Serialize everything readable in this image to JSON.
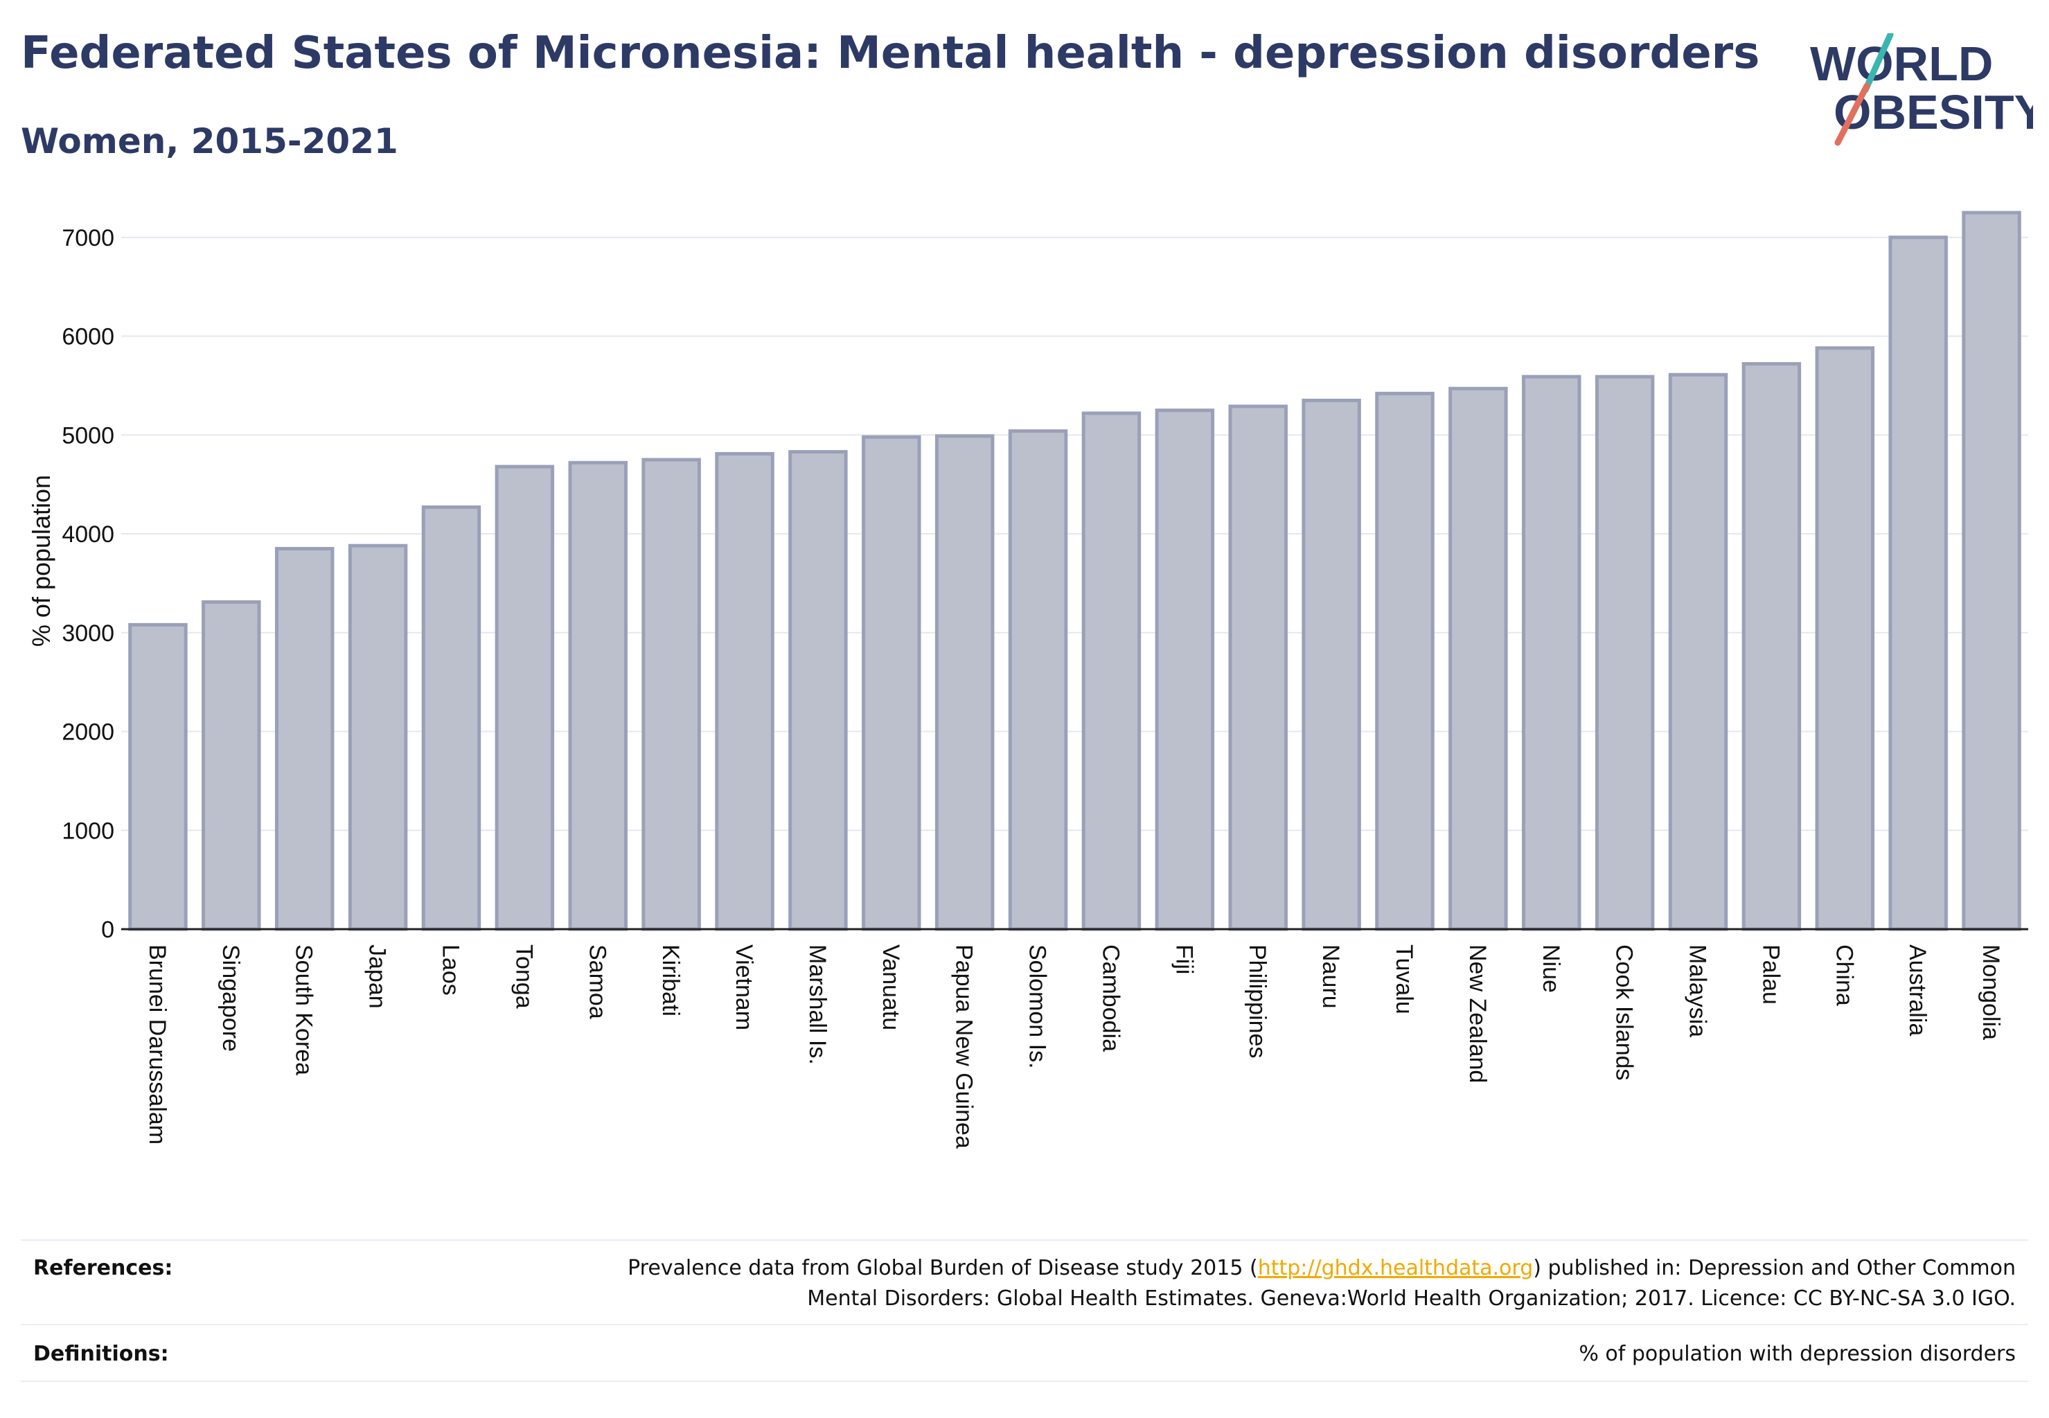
{
  "title": "Federated States of Micronesia: Mental health - depression disorders",
  "subtitle": "Women, 2015-2021",
  "logo": {
    "line1": "WORLD",
    "line2": "OBESITY"
  },
  "colors": {
    "title": "#2d3a66",
    "bar_fill": "#bcc0cd",
    "bar_stroke": "#9aa0b8",
    "grid": "#e6e8ef",
    "axis": "#222222",
    "link": "#f2a900",
    "logo_teal": "#3bb5b0",
    "logo_red": "#e2705e"
  },
  "chart_data": {
    "type": "bar",
    "title": "Federated States of Micronesia: Mental health - depression disorders",
    "subtitle": "Women, 2015-2021",
    "xlabel": "",
    "ylabel": "% of population",
    "ylim": [
      0,
      7300
    ],
    "yticks": [
      0,
      1000,
      2000,
      3000,
      4000,
      5000,
      6000,
      7000
    ],
    "grid": true,
    "categories": [
      "Brunei Darussalam",
      "Singapore",
      "South Korea",
      "Japan",
      "Laos",
      "Tonga",
      "Samoa",
      "Kiribati",
      "Vietnam",
      "Marshall Is.",
      "Vanuatu",
      "Papua New Guinea",
      "Solomon Is.",
      "Cambodia",
      "Fiji",
      "Philippines",
      "Nauru",
      "Tuvalu",
      "New Zealand",
      "Niue",
      "Cook Islands",
      "Malaysia",
      "Palau",
      "China",
      "Australia",
      "Mongolia"
    ],
    "values": [
      3080,
      3310,
      3850,
      3880,
      4270,
      4680,
      4720,
      4750,
      4810,
      4830,
      4980,
      4990,
      5040,
      5220,
      5250,
      5290,
      5350,
      5420,
      5470,
      5590,
      5590,
      5610,
      5720,
      5880,
      7000,
      7250
    ]
  },
  "footer": {
    "references_label": "References:",
    "references_line1_pre": "Prevalence data from Global Burden of Disease study 2015 (",
    "references_link": "http://ghdx.healthdata.org",
    "references_line1_post": ") published in: Depression and Other Common",
    "references_line2": "Mental Disorders: Global Health Estimates. Geneva:World Health Organization; 2017. Licence: CC BY-NC-SA 3.0 IGO.",
    "definitions_label": "Definitions:",
    "definitions_text": "% of population with depression disorders"
  }
}
